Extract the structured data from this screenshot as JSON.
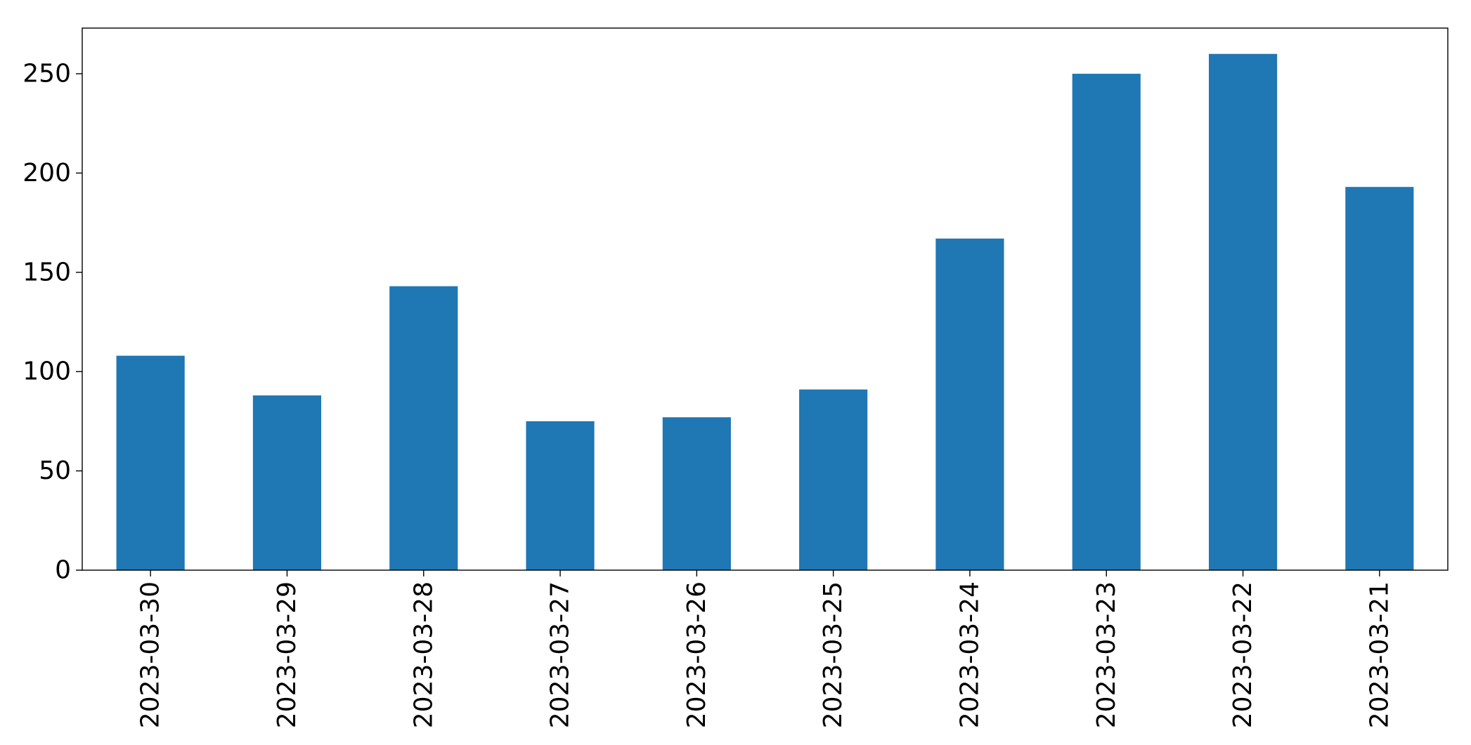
{
  "chart_data": {
    "type": "bar",
    "title": "",
    "xlabel": "",
    "ylabel": "",
    "categories": [
      "2023-03-30",
      "2023-03-29",
      "2023-03-28",
      "2023-03-27",
      "2023-03-26",
      "2023-03-25",
      "2023-03-24",
      "2023-03-23",
      "2023-03-22",
      "2023-03-21"
    ],
    "values": [
      108,
      88,
      143,
      75,
      77,
      91,
      167,
      250,
      260,
      193
    ],
    "ylim": [
      0,
      273
    ],
    "yticks": [
      0,
      50,
      100,
      150,
      200,
      250
    ],
    "grid": false,
    "legend": "none",
    "bar_color": "#1f77b4",
    "x_tick_rotation": "vertical"
  }
}
